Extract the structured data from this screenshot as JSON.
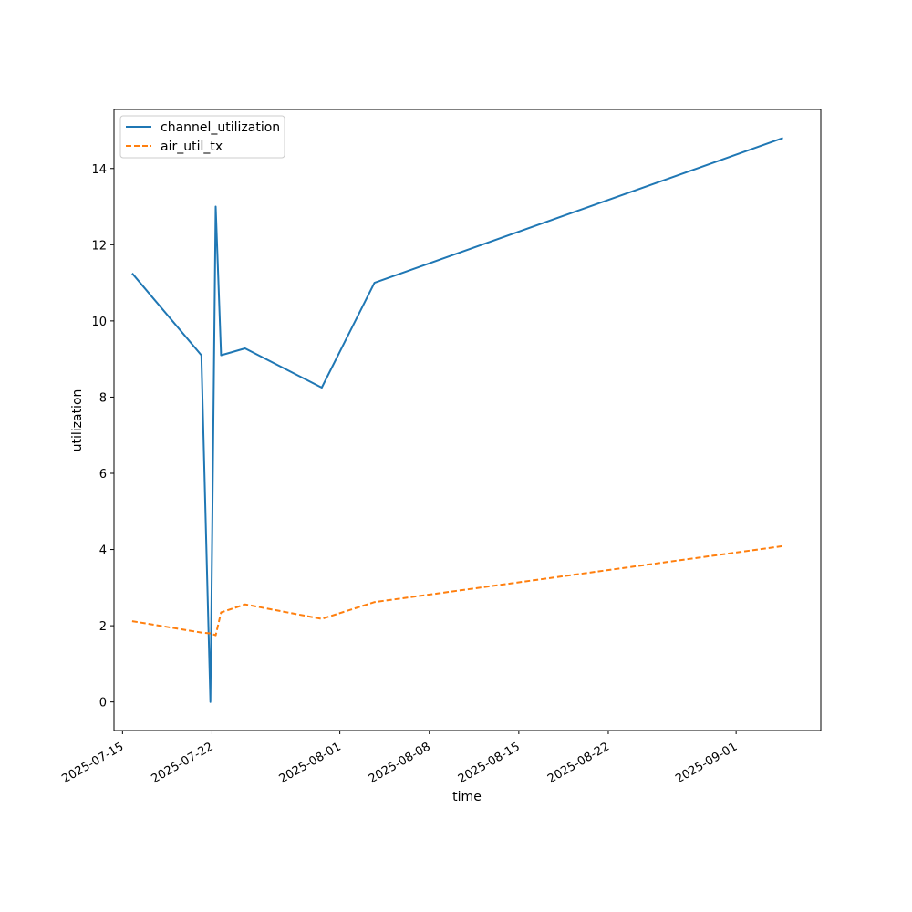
{
  "chart_data": {
    "type": "line",
    "title": "",
    "xlabel": "time",
    "ylabel": "utilization",
    "xlim": [
      "2025-07-14T08:00",
      "2025-09-07T15:00"
    ],
    "ylim": [
      -0.75,
      15.55
    ],
    "x_ticks": [
      "2025-07-15",
      "2025-07-22",
      "2025-08-01",
      "2025-08-08",
      "2025-08-15",
      "2025-08-22",
      "2025-09-01"
    ],
    "y_ticks": [
      0,
      2,
      4,
      6,
      8,
      10,
      12,
      14
    ],
    "grid": false,
    "legend": "top-left",
    "x": [
      "2025-07-15T18:00",
      "2025-07-21T04:00",
      "2025-07-21T21:00",
      "2025-07-22T07:00",
      "2025-07-22T17:00",
      "2025-07-24T14:00",
      "2025-07-30T14:00",
      "2025-08-03T17:00",
      "2025-09-04T16:00"
    ],
    "series": [
      {
        "name": "channel_utilization",
        "color": "#1f77b4",
        "dash": "solid",
        "values": [
          11.25,
          9.1,
          0.0,
          13.0,
          9.1,
          9.28,
          8.25,
          11.0,
          14.8
        ]
      },
      {
        "name": "air_util_tx",
        "color": "#ff7f0e",
        "dash": "dashed",
        "values": [
          2.12,
          1.82,
          1.8,
          1.75,
          2.35,
          2.56,
          2.18,
          2.62,
          4.09
        ]
      }
    ]
  }
}
